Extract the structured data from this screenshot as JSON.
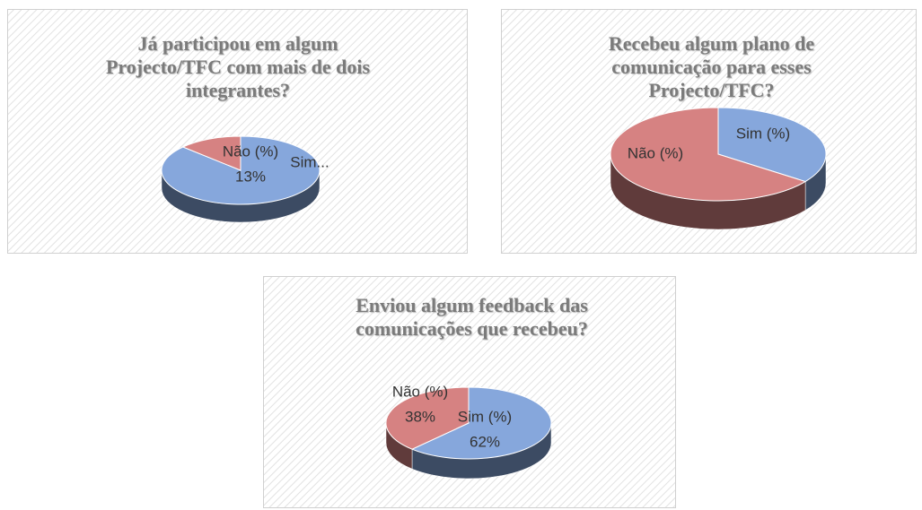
{
  "chart_data": [
    {
      "type": "pie",
      "title": "Já participou em algum Projecto/TFC com mais de dois integrantes?",
      "categories": [
        "Sim...",
        "Não (%)"
      ],
      "values": [
        87,
        13
      ],
      "value_labels": [
        null,
        "13%"
      ],
      "colors": [
        "#86a7dc",
        "#d68282"
      ]
    },
    {
      "type": "pie",
      "title": "Recebeu algum plano de comunicação para esses Projecto/TFC?",
      "categories": [
        "Sim (%)",
        "Não (%)"
      ],
      "values": [
        35,
        65
      ],
      "colors": [
        "#86a7dc",
        "#d68282"
      ]
    },
    {
      "type": "pie",
      "title": "Enviou algum feedback das comunicações que recebeu?",
      "categories": [
        "Sim (%)",
        "Não (%)"
      ],
      "values": [
        62,
        38
      ],
      "value_labels": [
        "62%",
        "38%"
      ],
      "colors": [
        "#86a7dc",
        "#d68282"
      ]
    }
  ]
}
